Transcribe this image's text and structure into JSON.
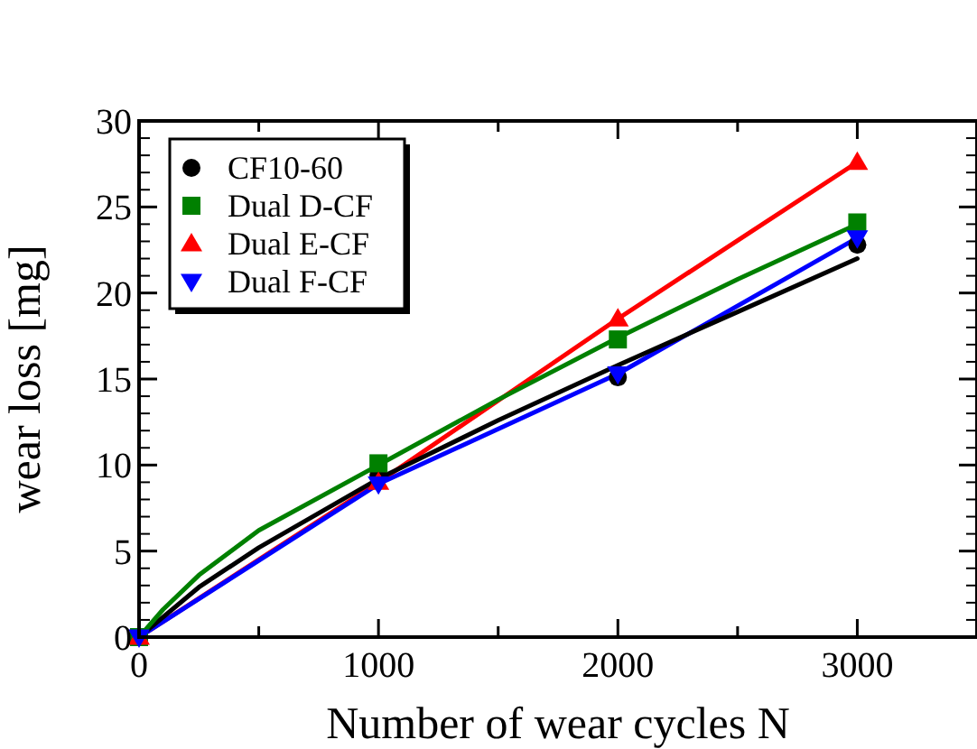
{
  "chart_data": {
    "type": "scatter",
    "xlabel": "Number of wear cycles N",
    "ylabel": "wear loss [mg]",
    "xlim": [
      0,
      3500
    ],
    "ylim": [
      0,
      30
    ],
    "xticks": [
      0,
      {
        "value": 500,
        "label": null
      },
      1000,
      {
        "value": 1500,
        "label": null
      },
      2000,
      {
        "value": 2500,
        "label": null
      },
      3000
    ],
    "yticks": [
      0,
      5,
      10,
      15,
      20,
      25,
      30
    ],
    "legend": "top left",
    "grid": false,
    "series": [
      {
        "type": "line",
        "color": "#ff0000",
        "x": [
          0,
          1000,
          2000,
          3000
        ],
        "values": [
          0,
          9.0,
          18.5,
          27.6
        ]
      },
      {
        "type": "line",
        "color": "#0000ff",
        "x": [
          0,
          1000,
          2000,
          3000
        ],
        "values": [
          0,
          8.9,
          15.3,
          23.2
        ]
      },
      {
        "type": "line",
        "color": "#000000",
        "x": [
          0,
          250,
          500,
          1000,
          1500,
          2000,
          2500,
          3000
        ],
        "values": [
          0,
          2.9,
          5.2,
          9.2,
          12.6,
          15.8,
          18.9,
          22.0
        ]
      },
      {
        "type": "line",
        "color": "#008000",
        "x": [
          0,
          100,
          250,
          500,
          1000,
          1500,
          2000,
          2500,
          3000
        ],
        "values": [
          0,
          1.6,
          3.6,
          6.2,
          10.0,
          13.8,
          17.4,
          20.8,
          24.0
        ]
      },
      {
        "name": "CF10-60",
        "color": "#000000",
        "marker": "circle",
        "x": [
          1000,
          2000,
          3000
        ],
        "values": [
          9.4,
          15.1,
          22.8
        ]
      },
      {
        "name": "Dual D-CF",
        "color": "#008000",
        "marker": "square",
        "x": [
          0,
          1000,
          2000,
          3000
        ],
        "values": [
          0,
          10.1,
          17.3,
          24.1
        ]
      },
      {
        "name": "Dual E-CF",
        "color": "#ff0000",
        "marker": "triangle",
        "x": [
          0,
          1000,
          2000,
          3000
        ],
        "values": [
          0,
          9.0,
          18.5,
          27.6
        ]
      },
      {
        "name": "Dual F-CF",
        "color": "#0000ff",
        "marker": "triangle-down",
        "x": [
          0,
          1000,
          2000,
          3000
        ],
        "values": [
          0,
          8.9,
          15.3,
          23.2
        ]
      }
    ]
  }
}
